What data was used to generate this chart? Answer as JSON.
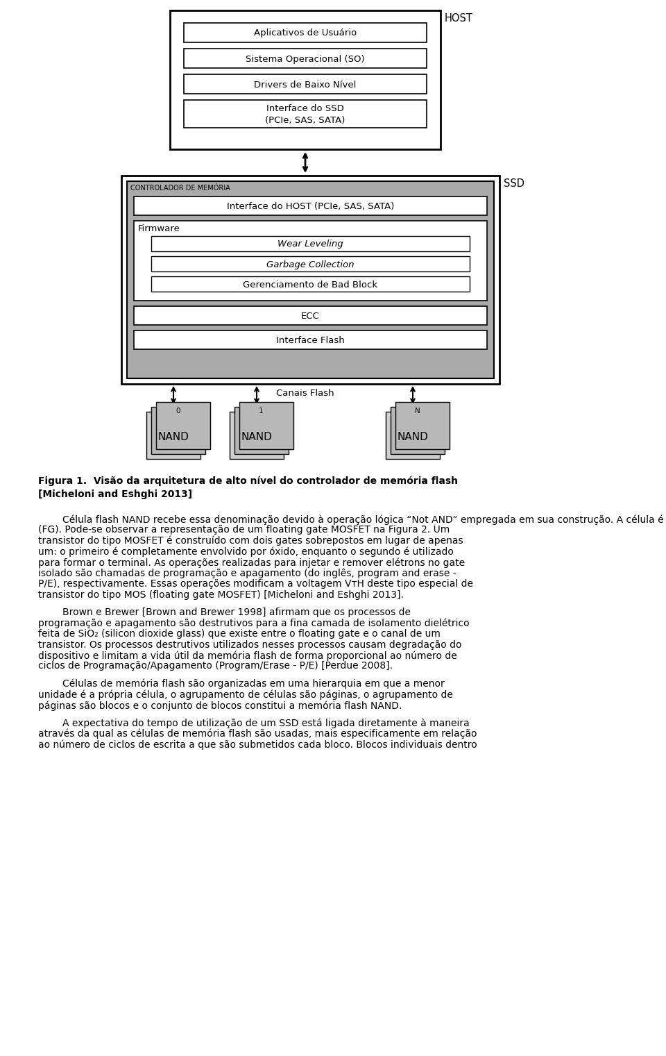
{
  "bg_color": "#ffffff",
  "host_label": "HOST",
  "ssd_label": "SSD",
  "host_boxes": [
    "Aplicativos de Usuário",
    "Sistema Operacional (SO)",
    "Drivers de Baixo Nível",
    "Interface do SSD\n(PCIe, SAS, SATA)"
  ],
  "controlador_label": "CONTROLADOR DE MEMÓRIA",
  "host_interface_label": "Interface do HOST (PCIe, SAS, SATA)",
  "firmware_label": "Firmware",
  "firmware_boxes": [
    "Wear Leveling",
    "Garbage Collection",
    "Gerenciamento de Bad Block"
  ],
  "ecc_label": "ECC",
  "interface_flash_label": "Interface Flash",
  "canais_flash_label": "Canais Flash",
  "nand_labels": [
    "NAND",
    "NAND",
    "NAND"
  ],
  "channel_labels": [
    "0",
    "1",
    "N"
  ],
  "figure_caption": "Figura 1.  Visão da arquitetura de alto nível do controlador de memória flash\n[Micheloni and Eshghi 2013]",
  "p1_lines": [
    "        Célula flash NAND recebe essa denominação devido à operação lógica “Not AND” empregada em sua construção. A célula é baseada na tecnologia de Floating Gate",
    "(FG). Pode-se observar a representação de um floating gate MOSFET na Figura 2. Um",
    "transistor do tipo MOSFET é construído com dois gates sobrepostos em lugar de apenas",
    "um: o primeiro é completamente envolvido por óxido, enquanto o segundo é utilizado",
    "para formar o terminal. As operações realizadas para injetar e remover elétrons no gate",
    "isolado são chamadas de programação e apagamento (do inglês, program and erase -",
    "P/E), respectivamente. Essas operações modificam a voltagem VᴛH deste tipo especial de",
    "transistor do tipo MOS (floating gate MOSFET) [Micheloni and Eshghi 2013]."
  ],
  "p2_lines": [
    "        Brown e Brewer [Brown and Brewer 1998] afirmam que os processos de",
    "programação e apagamento são destrutivos para a fina camada de isolamento dielétrico",
    "feita de SiO₂ (silicon dioxide glass) que existe entre o floating gate e o canal de um",
    "transistor. Os processos destrutivos utilizados nesses processos causam degradação do",
    "dispositivo e limitam a vida útil da memória flash de forma proporcional ao número de",
    "ciclos de Programação/Apagamento (Program/Erase - P/E) [Perdue 2008]."
  ],
  "p3_lines": [
    "        Células de memória flash são organizadas em uma hierarquia em que a menor",
    "unidade é a própria célula, o agrupamento de células são páginas, o agrupamento de",
    "páginas são blocos e o conjunto de blocos constitui a memória flash NAND."
  ],
  "p4_lines": [
    "        A expectativa do tempo de utilização de um SSD está ligada diretamente à maneira",
    "através da qual as células de memória flash são usadas, mais especificamente em relação",
    "ao número de ciclos de escrita a que são submetidos cada bloco. Blocos individuais dentro"
  ]
}
